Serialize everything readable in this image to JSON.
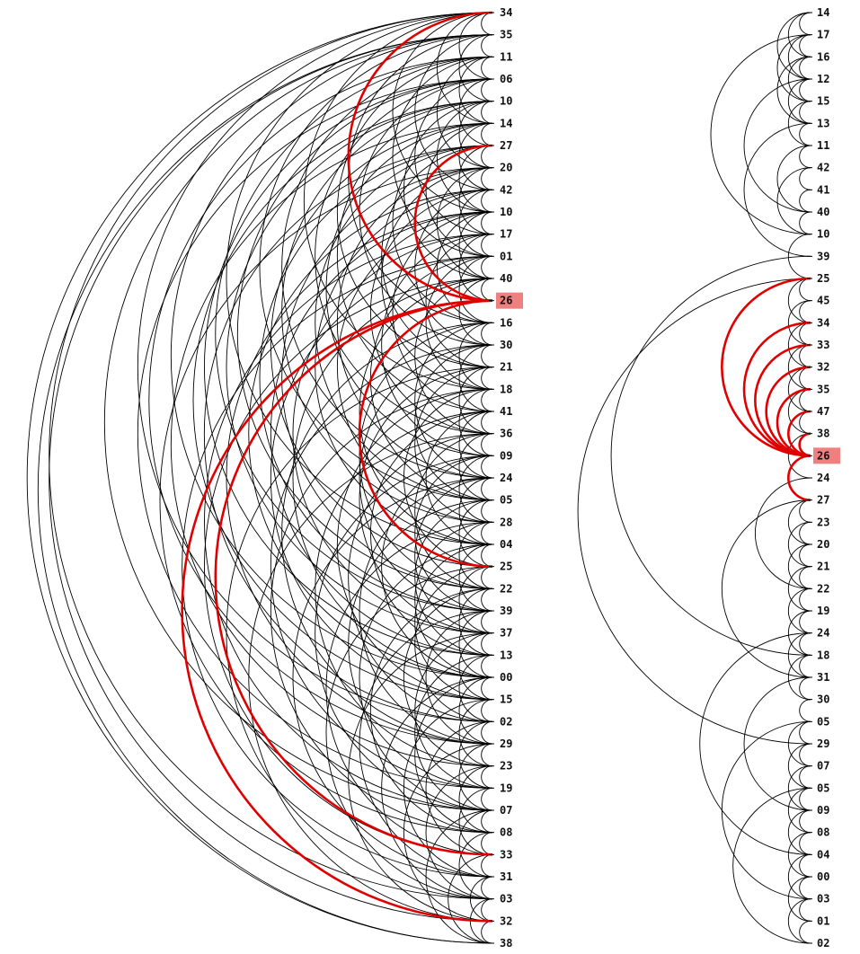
{
  "colors": {
    "highlight": "#e00000",
    "highlight_box": "#f08080",
    "edge": "#000000",
    "background": "#ffffff"
  },
  "left_diagram": {
    "labels": [
      "34",
      "35",
      "11",
      "06",
      "10",
      "14",
      "27",
      "20",
      "42",
      "10",
      "17",
      "01",
      "40",
      "26",
      "16",
      "30",
      "21",
      "18",
      "41",
      "36",
      "09",
      "24",
      "05",
      "28",
      "04",
      "25",
      "22",
      "39",
      "37",
      "13",
      "00",
      "15",
      "02",
      "29",
      "23",
      "19",
      "07",
      "08",
      "33",
      "31",
      "03",
      "32",
      "38"
    ],
    "highlighted_label": "26",
    "highlighted_index": 13,
    "highlighted_edges": [
      [
        13,
        0
      ],
      [
        13,
        6
      ],
      [
        13,
        25
      ],
      [
        13,
        38
      ],
      [
        13,
        41
      ]
    ],
    "edges": [
      [
        0,
        1
      ],
      [
        0,
        3
      ],
      [
        0,
        5
      ],
      [
        0,
        9
      ],
      [
        0,
        17
      ],
      [
        0,
        24
      ],
      [
        0,
        32
      ],
      [
        0,
        40
      ],
      [
        0,
        42
      ],
      [
        1,
        2
      ],
      [
        1,
        4
      ],
      [
        1,
        8
      ],
      [
        1,
        14
      ],
      [
        1,
        22
      ],
      [
        1,
        30
      ],
      [
        1,
        36
      ],
      [
        1,
        41
      ],
      [
        1,
        42
      ],
      [
        2,
        3
      ],
      [
        2,
        5
      ],
      [
        2,
        7
      ],
      [
        2,
        11
      ],
      [
        2,
        16
      ],
      [
        2,
        21
      ],
      [
        2,
        27
      ],
      [
        2,
        33
      ],
      [
        3,
        4
      ],
      [
        3,
        6
      ],
      [
        3,
        10
      ],
      [
        3,
        15
      ],
      [
        3,
        19
      ],
      [
        3,
        26
      ],
      [
        3,
        29
      ],
      [
        3,
        35
      ],
      [
        4,
        5
      ],
      [
        4,
        7
      ],
      [
        4,
        9
      ],
      [
        4,
        12
      ],
      [
        4,
        18
      ],
      [
        4,
        23
      ],
      [
        4,
        28
      ],
      [
        4,
        31
      ],
      [
        5,
        6
      ],
      [
        5,
        8
      ],
      [
        5,
        11
      ],
      [
        5,
        14
      ],
      [
        5,
        20
      ],
      [
        5,
        25
      ],
      [
        5,
        34
      ],
      [
        6,
        7
      ],
      [
        6,
        9
      ],
      [
        6,
        13
      ],
      [
        6,
        16
      ],
      [
        6,
        22
      ],
      [
        6,
        27
      ],
      [
        6,
        32
      ],
      [
        7,
        8
      ],
      [
        7,
        10
      ],
      [
        7,
        12
      ],
      [
        7,
        17
      ],
      [
        7,
        21
      ],
      [
        7,
        26
      ],
      [
        7,
        37
      ],
      [
        8,
        9
      ],
      [
        8,
        11
      ],
      [
        8,
        15
      ],
      [
        8,
        19
      ],
      [
        8,
        24
      ],
      [
        8,
        30
      ],
      [
        9,
        10
      ],
      [
        9,
        12
      ],
      [
        9,
        14
      ],
      [
        9,
        18
      ],
      [
        9,
        23
      ],
      [
        9,
        29
      ],
      [
        9,
        33
      ],
      [
        10,
        11
      ],
      [
        10,
        13
      ],
      [
        10,
        16
      ],
      [
        10,
        20
      ],
      [
        10,
        28
      ],
      [
        10,
        36
      ],
      [
        11,
        12
      ],
      [
        11,
        14
      ],
      [
        11,
        17
      ],
      [
        11,
        22
      ],
      [
        11,
        31
      ],
      [
        11,
        39
      ],
      [
        12,
        13
      ],
      [
        12,
        15
      ],
      [
        12,
        19
      ],
      [
        12,
        24
      ],
      [
        12,
        30
      ],
      [
        12,
        38
      ],
      [
        14,
        15
      ],
      [
        14,
        17
      ],
      [
        14,
        21
      ],
      [
        14,
        26
      ],
      [
        14,
        33
      ],
      [
        15,
        16
      ],
      [
        15,
        18
      ],
      [
        15,
        22
      ],
      [
        15,
        27
      ],
      [
        15,
        35
      ],
      [
        16,
        17
      ],
      [
        16,
        19
      ],
      [
        16,
        23
      ],
      [
        16,
        28
      ],
      [
        16,
        40
      ],
      [
        17,
        18
      ],
      [
        17,
        20
      ],
      [
        17,
        25
      ],
      [
        17,
        31
      ],
      [
        17,
        37
      ],
      [
        18,
        19
      ],
      [
        18,
        21
      ],
      [
        18,
        24
      ],
      [
        18,
        29
      ],
      [
        18,
        34
      ],
      [
        19,
        20
      ],
      [
        19,
        22
      ],
      [
        19,
        26
      ],
      [
        19,
        32
      ],
      [
        19,
        41
      ],
      [
        20,
        21
      ],
      [
        20,
        23
      ],
      [
        20,
        27
      ],
      [
        20,
        30
      ],
      [
        20,
        36
      ],
      [
        21,
        22
      ],
      [
        21,
        24
      ],
      [
        21,
        28
      ],
      [
        21,
        33
      ],
      [
        21,
        39
      ],
      [
        22,
        23
      ],
      [
        22,
        25
      ],
      [
        22,
        29
      ],
      [
        22,
        35
      ],
      [
        23,
        24
      ],
      [
        23,
        26
      ],
      [
        23,
        30
      ],
      [
        23,
        38
      ],
      [
        24,
        25
      ],
      [
        24,
        27
      ],
      [
        24,
        31
      ],
      [
        24,
        36
      ],
      [
        25,
        26
      ],
      [
        25,
        28
      ],
      [
        25,
        32
      ],
      [
        25,
        40
      ],
      [
        26,
        27
      ],
      [
        26,
        29
      ],
      [
        26,
        34
      ],
      [
        26,
        37
      ],
      [
        27,
        28
      ],
      [
        27,
        30
      ],
      [
        27,
        33
      ],
      [
        27,
        39
      ],
      [
        28,
        29
      ],
      [
        28,
        31
      ],
      [
        28,
        35
      ],
      [
        28,
        41
      ],
      [
        29,
        30
      ],
      [
        29,
        32
      ],
      [
        29,
        36
      ],
      [
        30,
        31
      ],
      [
        30,
        33
      ],
      [
        30,
        37
      ],
      [
        30,
        40
      ],
      [
        31,
        32
      ],
      [
        31,
        34
      ],
      [
        31,
        39
      ],
      [
        32,
        33
      ],
      [
        32,
        35
      ],
      [
        32,
        38
      ],
      [
        33,
        34
      ],
      [
        33,
        36
      ],
      [
        33,
        41
      ],
      [
        34,
        35
      ],
      [
        34,
        37
      ],
      [
        34,
        40
      ],
      [
        35,
        36
      ],
      [
        35,
        38
      ],
      [
        36,
        37
      ],
      [
        36,
        39
      ],
      [
        36,
        42
      ],
      [
        37,
        38
      ],
      [
        37,
        40
      ],
      [
        38,
        39
      ],
      [
        38,
        42
      ],
      [
        39,
        40
      ],
      [
        39,
        41
      ],
      [
        40,
        41
      ],
      [
        40,
        42
      ],
      [
        41,
        42
      ]
    ]
  },
  "right_diagram": {
    "labels": [
      "14",
      "17",
      "16",
      "12",
      "15",
      "13",
      "11",
      "42",
      "41",
      "40",
      "10",
      "39",
      "25",
      "45",
      "34",
      "33",
      "32",
      "35",
      "47",
      "38",
      "26",
      "24",
      "27",
      "23",
      "20",
      "21",
      "22",
      "19",
      "24",
      "18",
      "31",
      "30",
      "05",
      "29",
      "07",
      "05",
      "09",
      "08",
      "04",
      "00",
      "03",
      "01",
      "02"
    ],
    "highlighted_label": "26",
    "highlighted_index": 20,
    "highlighted_edges": [
      [
        20,
        12
      ],
      [
        20,
        14
      ],
      [
        20,
        15
      ],
      [
        20,
        16
      ],
      [
        20,
        17
      ],
      [
        20,
        18
      ],
      [
        20,
        19
      ],
      [
        20,
        22
      ]
    ],
    "edges": [
      [
        0,
        1
      ],
      [
        0,
        2
      ],
      [
        0,
        3
      ],
      [
        1,
        2
      ],
      [
        1,
        3
      ],
      [
        1,
        4
      ],
      [
        2,
        3
      ],
      [
        2,
        4
      ],
      [
        2,
        5
      ],
      [
        3,
        4
      ],
      [
        3,
        5
      ],
      [
        4,
        5
      ],
      [
        4,
        6
      ],
      [
        5,
        6
      ],
      [
        1,
        10
      ],
      [
        3,
        9
      ],
      [
        6,
        7
      ],
      [
        7,
        8
      ],
      [
        8,
        9
      ],
      [
        6,
        9
      ],
      [
        9,
        10
      ],
      [
        7,
        10
      ],
      [
        5,
        11
      ],
      [
        10,
        12
      ],
      [
        12,
        13
      ],
      [
        12,
        14
      ],
      [
        13,
        14
      ],
      [
        14,
        15
      ],
      [
        14,
        16
      ],
      [
        15,
        16
      ],
      [
        15,
        17
      ],
      [
        16,
        17
      ],
      [
        16,
        18
      ],
      [
        17,
        18
      ],
      [
        17,
        19
      ],
      [
        18,
        19
      ],
      [
        13,
        15
      ],
      [
        19,
        21
      ],
      [
        12,
        33
      ],
      [
        11,
        29
      ],
      [
        22,
        23
      ],
      [
        22,
        24
      ],
      [
        23,
        24
      ],
      [
        23,
        25
      ],
      [
        24,
        25
      ],
      [
        24,
        26
      ],
      [
        25,
        26
      ],
      [
        25,
        27
      ],
      [
        26,
        27
      ],
      [
        26,
        28
      ],
      [
        27,
        28
      ],
      [
        27,
        29
      ],
      [
        28,
        29
      ],
      [
        28,
        30
      ],
      [
        29,
        30
      ],
      [
        29,
        31
      ],
      [
        30,
        31
      ],
      [
        22,
        30
      ],
      [
        21,
        26
      ],
      [
        28,
        38
      ],
      [
        31,
        32
      ],
      [
        32,
        33
      ],
      [
        32,
        34
      ],
      [
        33,
        34
      ],
      [
        33,
        35
      ],
      [
        34,
        35
      ],
      [
        34,
        36
      ],
      [
        35,
        36
      ],
      [
        35,
        37
      ],
      [
        36,
        37
      ],
      [
        36,
        38
      ],
      [
        37,
        38
      ],
      [
        37,
        39
      ],
      [
        38,
        39
      ],
      [
        38,
        40
      ],
      [
        39,
        40
      ],
      [
        39,
        41
      ],
      [
        40,
        41
      ],
      [
        40,
        42
      ],
      [
        41,
        42
      ],
      [
        32,
        40
      ],
      [
        35,
        42
      ],
      [
        30,
        36
      ]
    ]
  }
}
